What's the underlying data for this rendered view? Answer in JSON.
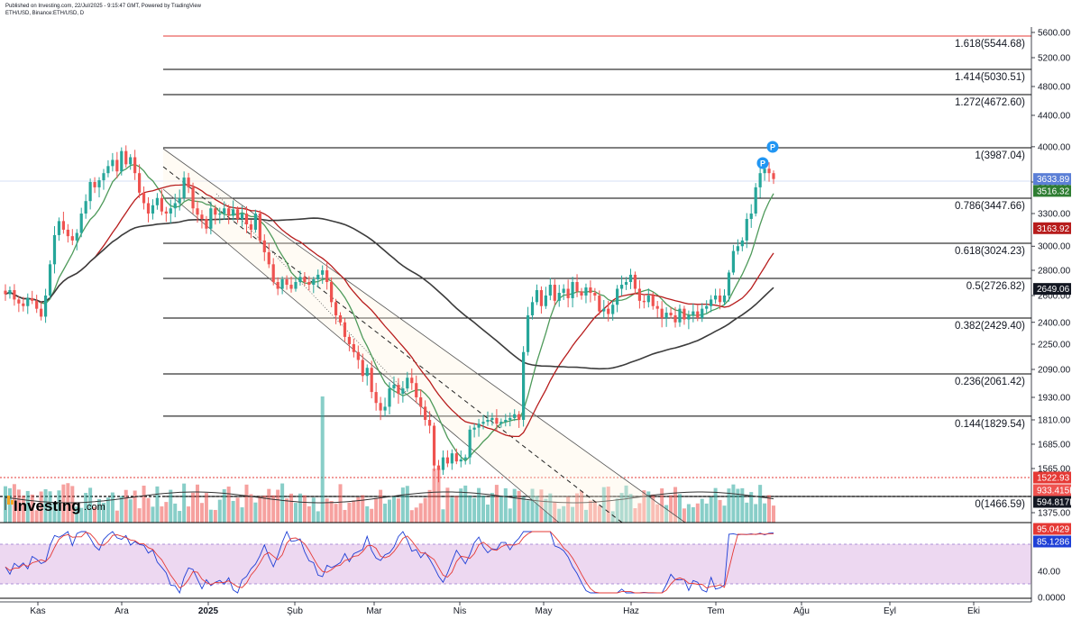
{
  "header": {
    "published": "Published on Investing.com, 22/Jul/2025 - 9:15:47 GMT, Powered by TradingView",
    "symbol": "ETH/USD, Binance:ETH/USD, D"
  },
  "brand": {
    "name": "Investing",
    "suffix": ".com"
  },
  "colors": {
    "up": "#26a69a",
    "down": "#ef5350",
    "ma_fast": "#4e9a5a",
    "ma_mid": "#b71c1c",
    "ma_slow": "#3c3c3c",
    "fib": "#000000",
    "fib_top": "#e53935",
    "stoch_bg": "#e1bee7"
  },
  "chart_data": {
    "type": "candlestick",
    "x_axis_labels": [
      "Kas",
      "Ara",
      "2025",
      "Şub",
      "Mar",
      "Nis",
      "May",
      "Haz",
      "Tem",
      "Ağu",
      "Eyl",
      "Eki"
    ],
    "price_axis_ticks": [
      "5600.00",
      "5200.00",
      "4800.00",
      "4400.00",
      "4000.00",
      "3600.00",
      "3300.00",
      "3000.00",
      "2800.00",
      "2600.00",
      "2400.00",
      "2250.00",
      "2090.00",
      "1930.00",
      "1810.00",
      "1685.00",
      "1565.00",
      "1375.00"
    ],
    "fibonacci_levels": [
      {
        "label": "1.618(5544.68)",
        "ratio": 1.618,
        "value": 5544.68
      },
      {
        "label": "1.414(5030.51)",
        "ratio": 1.414,
        "value": 5030.51
      },
      {
        "label": "1.272(4672.60)",
        "ratio": 1.272,
        "value": 4672.6
      },
      {
        "label": "1(3987.04)",
        "ratio": 1,
        "value": 3987.04
      },
      {
        "label": "0.786(3447.66)",
        "ratio": 0.786,
        "value": 3447.66
      },
      {
        "label": "0.618(3024.23)",
        "ratio": 0.618,
        "value": 3024.23
      },
      {
        "label": "0.5(2726.82)",
        "ratio": 0.5,
        "value": 2726.82
      },
      {
        "label": "0.382(2429.40)",
        "ratio": 0.382,
        "value": 2429.4
      },
      {
        "label": "0.236(2061.42)",
        "ratio": 0.236,
        "value": 2061.42
      },
      {
        "label": "0.144(1829.54)",
        "ratio": 0.144,
        "value": 1829.54
      },
      {
        "label": "0(1466.59)",
        "ratio": 0,
        "value": 1466.59
      }
    ],
    "price_tags": [
      {
        "text": "3633.89",
        "value": 3633.89,
        "color": "#5b7fd6"
      },
      {
        "text": "3516.32",
        "value": 3516.32,
        "color": "#2e7d32"
      },
      {
        "text": "3163.92",
        "value": 3163.92,
        "color": "#b71c1c"
      },
      {
        "text": "2649.06",
        "value": 2649.06,
        "color": "#131722"
      }
    ],
    "volume_tags": [
      {
        "text": "1522.93",
        "color": "#e53935"
      },
      {
        "text": "933.415K",
        "color": "#ef5350"
      },
      {
        "text": "594.817K",
        "color": "#131722"
      }
    ],
    "stochastic": {
      "ticks": [
        "40.00",
        "0.0000"
      ],
      "tags": [
        {
          "text": "95.0429",
          "color": "#e53935"
        },
        {
          "text": "85.1286",
          "color": "#1e3fd6"
        }
      ]
    },
    "close_approx": [
      2610,
      2640,
      2570,
      2540,
      2520,
      2580,
      2560,
      2500,
      2440,
      2600,
      2850,
      3100,
      3230,
      3150,
      3090,
      3050,
      3120,
      3300,
      3420,
      3600,
      3550,
      3620,
      3700,
      3780,
      3850,
      3720,
      3950,
      3800,
      3880,
      3700,
      3500,
      3400,
      3300,
      3380,
      3450,
      3320,
      3300,
      3350,
      3400,
      3450,
      3650,
      3550,
      3350,
      3290,
      3250,
      3160,
      3350,
      3290,
      3300,
      3350,
      3280,
      3340,
      3250,
      3300,
      3200,
      3150,
      3300,
      3050,
      2950,
      2850,
      2700,
      2650,
      2720,
      2680,
      2650,
      2700,
      2740,
      2700,
      2680,
      2720,
      2760,
      2800,
      2700,
      2550,
      2450,
      2400,
      2300,
      2250,
      2200,
      2150,
      2050,
      2100,
      1960,
      1900,
      1860,
      1880,
      1980,
      2000,
      1950,
      1980,
      2040,
      2010,
      1930,
      1880,
      1810,
      1780,
      1580,
      1560,
      1620,
      1590,
      1640,
      1600,
      1610,
      1620,
      1760,
      1770,
      1790,
      1800,
      1810,
      1820,
      1790,
      1800,
      1810,
      1820,
      1840,
      1810,
      2200,
      2450,
      2550,
      2640,
      2520,
      2600,
      2680,
      2560,
      2620,
      2650,
      2580,
      2700,
      2630,
      2600,
      2660,
      2620,
      2600,
      2480,
      2500,
      2460,
      2530,
      2650,
      2680,
      2700,
      2760,
      2650,
      2560,
      2550,
      2600,
      2520,
      2500,
      2430,
      2470,
      2450,
      2400,
      2500,
      2420,
      2450,
      2480,
      2430,
      2500,
      2520,
      2570,
      2600,
      2550,
      2600,
      2780,
      2960,
      3000,
      3050,
      3250,
      3300,
      3550,
      3700,
      3750,
      3700,
      3633.89
    ]
  }
}
